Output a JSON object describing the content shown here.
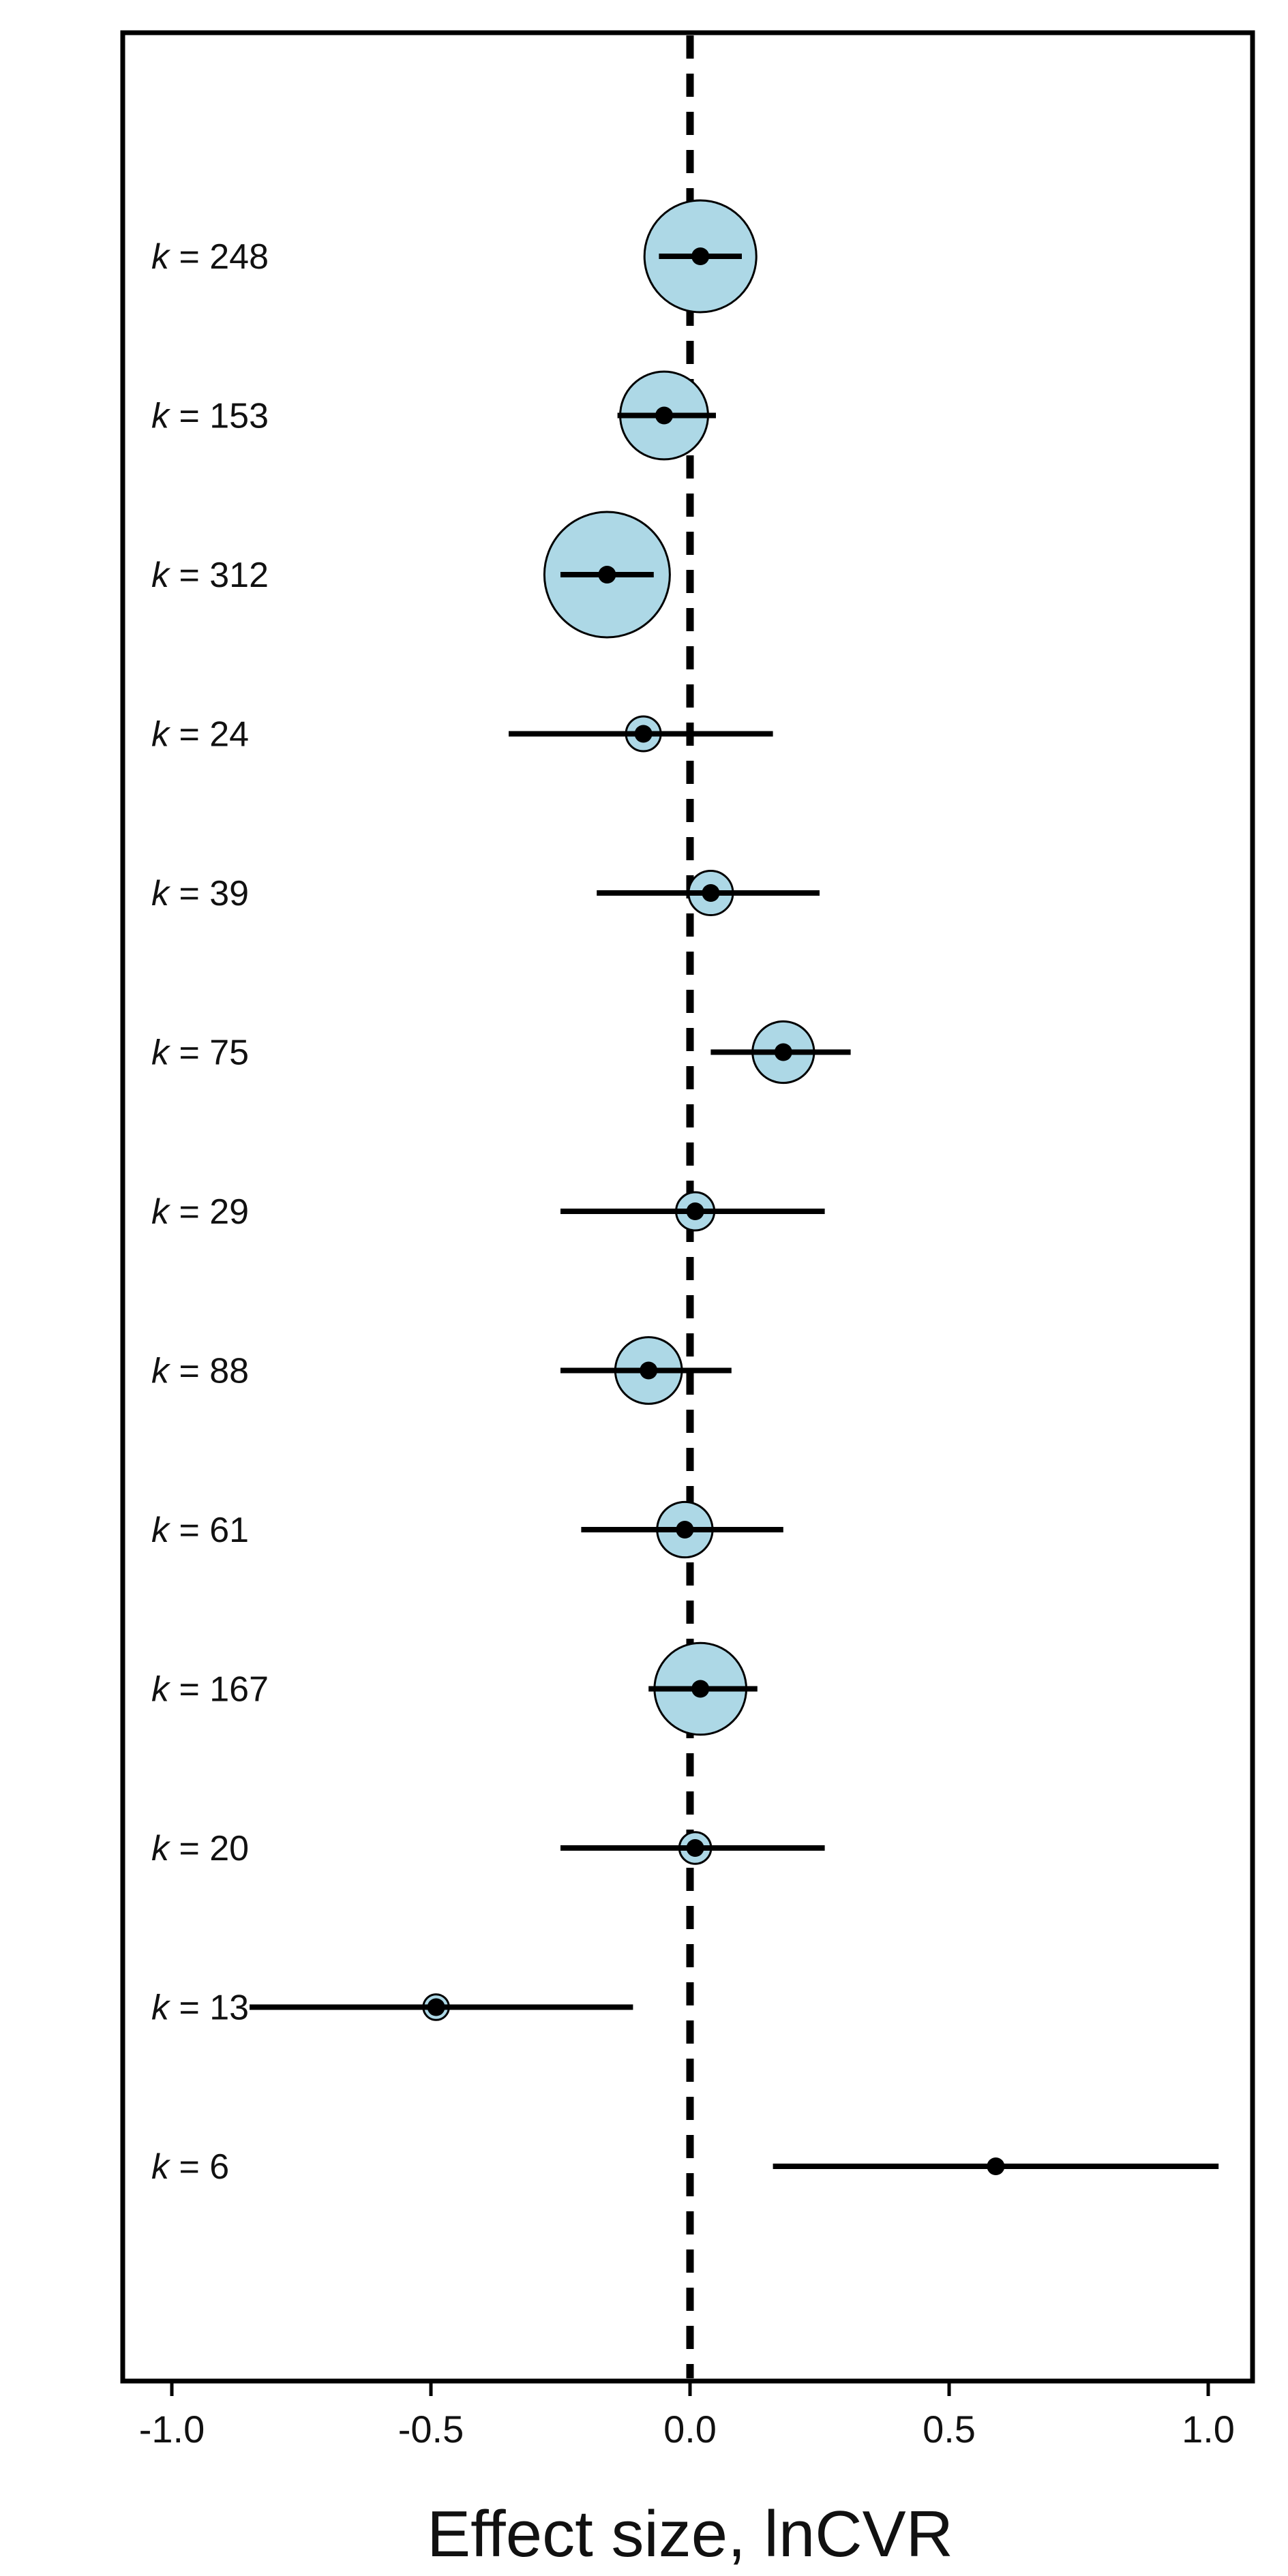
{
  "chart_data": {
    "type": "forest",
    "xlabel": "Effect size, lnCVR",
    "xlim": [
      -1.1,
      1.1
    ],
    "xticks": [
      -1.0,
      -0.5,
      0.0,
      0.5,
      1.0
    ],
    "xtick_labels": [
      "-1.0",
      "-0.5",
      "0.0",
      "0.5",
      "1.0"
    ],
    "reference_line": 0.0,
    "marker_fill": "#add8e6",
    "line_color": "#000000",
    "rows": [
      {
        "label_prefix": "k",
        "label_suffix": " = 248",
        "k": 248,
        "estimate": 0.02,
        "ci": [
          -0.06,
          0.1
        ]
      },
      {
        "label_prefix": "k",
        "label_suffix": " = 153",
        "k": 153,
        "estimate": -0.05,
        "ci": [
          -0.14,
          0.05
        ]
      },
      {
        "label_prefix": "k",
        "label_suffix": " = 312",
        "k": 312,
        "estimate": -0.16,
        "ci": [
          -0.25,
          -0.07
        ]
      },
      {
        "label_prefix": "k",
        "label_suffix": " = 24",
        "k": 24,
        "estimate": -0.09,
        "ci": [
          -0.35,
          0.16
        ]
      },
      {
        "label_prefix": "k",
        "label_suffix": " = 39",
        "k": 39,
        "estimate": 0.04,
        "ci": [
          -0.18,
          0.25
        ]
      },
      {
        "label_prefix": "k",
        "label_suffix": " = 75",
        "k": 75,
        "estimate": 0.18,
        "ci": [
          0.04,
          0.31
        ]
      },
      {
        "label_prefix": "k",
        "label_suffix": " = 29",
        "k": 29,
        "estimate": 0.01,
        "ci": [
          -0.25,
          0.26
        ]
      },
      {
        "label_prefix": "k",
        "label_suffix": " = 88",
        "k": 88,
        "estimate": -0.08,
        "ci": [
          -0.25,
          0.08
        ]
      },
      {
        "label_prefix": "k",
        "label_suffix": " = 61",
        "k": 61,
        "estimate": -0.01,
        "ci": [
          -0.21,
          0.18
        ]
      },
      {
        "label_prefix": "k",
        "label_suffix": " = 167",
        "k": 167,
        "estimate": 0.02,
        "ci": [
          -0.08,
          0.13
        ]
      },
      {
        "label_prefix": "k",
        "label_suffix": " = 20",
        "k": 20,
        "estimate": 0.01,
        "ci": [
          -0.25,
          0.26
        ]
      },
      {
        "label_prefix": "k",
        "label_suffix": " = 13",
        "k": 13,
        "estimate": -0.49,
        "ci": [
          -0.85,
          -0.11
        ]
      },
      {
        "label_prefix": "k",
        "label_suffix": " = 6",
        "k": 6,
        "estimate": 0.59,
        "ci": [
          0.16,
          1.02
        ]
      }
    ]
  }
}
